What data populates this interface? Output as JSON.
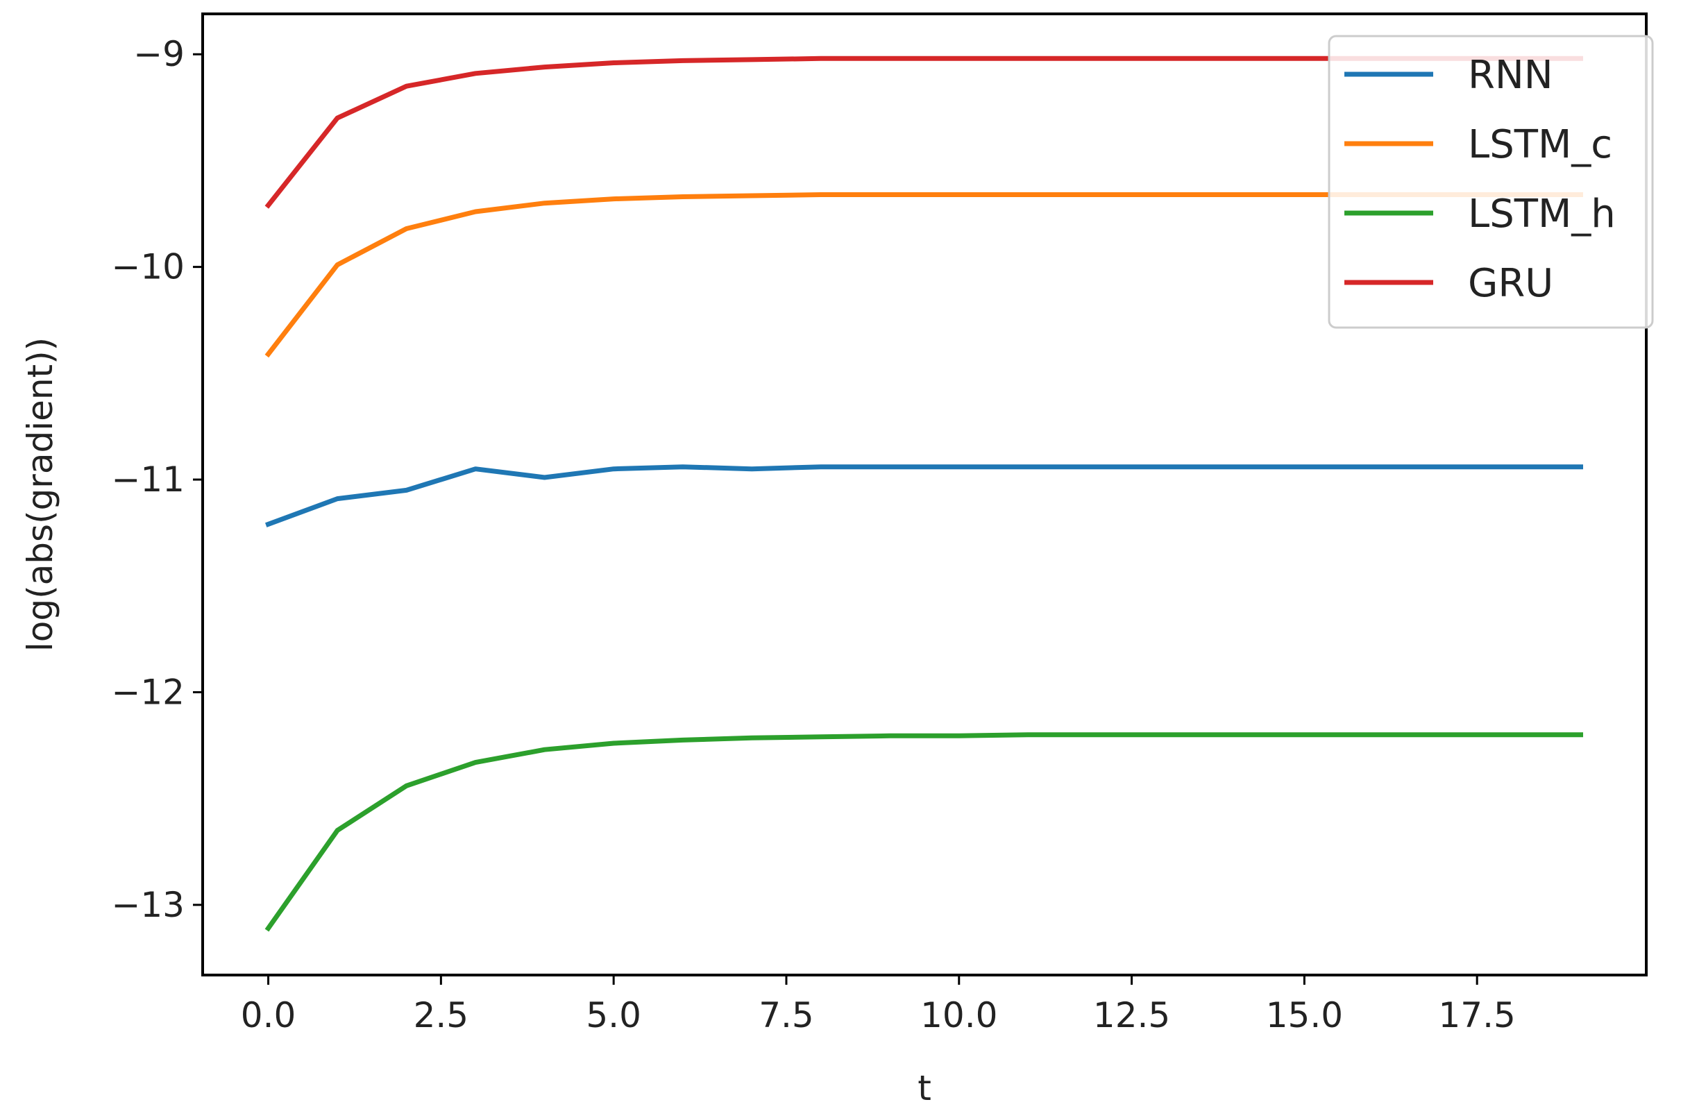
{
  "chart_data": {
    "type": "line",
    "title": "",
    "xlabel": "t",
    "ylabel": "log(abs(gradient))",
    "xlim": [
      -0.95,
      19.95
    ],
    "ylim": [
      -13.33,
      -8.81
    ],
    "xticks": [
      0.0,
      2.5,
      5.0,
      7.5,
      10.0,
      12.5,
      15.0,
      17.5
    ],
    "xtick_labels": [
      "0.0",
      "2.5",
      "5.0",
      "7.5",
      "10.0",
      "12.5",
      "15.0",
      "17.5"
    ],
    "yticks": [
      -9,
      -10,
      -11,
      -12,
      -13
    ],
    "ytick_labels": [
      "−9",
      "−10",
      "−11",
      "−12",
      "−13"
    ],
    "grid": false,
    "legend_position": "top-right",
    "x": [
      0,
      1,
      2,
      3,
      4,
      5,
      6,
      7,
      8,
      9,
      10,
      11,
      12,
      13,
      14,
      15,
      16,
      17,
      18,
      19
    ],
    "series": [
      {
        "name": "RNN",
        "color": "#1f77b4",
        "values": [
          -11.21,
          -11.09,
          -11.05,
          -10.95,
          -10.99,
          -10.95,
          -10.94,
          -10.95,
          -10.94,
          -10.94,
          -10.94,
          -10.94,
          -10.94,
          -10.94,
          -10.94,
          -10.94,
          -10.94,
          -10.94,
          -10.94,
          -10.94
        ]
      },
      {
        "name": "LSTM_c",
        "color": "#ff7f0e",
        "values": [
          -10.41,
          -9.99,
          -9.82,
          -9.74,
          -9.7,
          -9.68,
          -9.67,
          -9.665,
          -9.66,
          -9.66,
          -9.66,
          -9.66,
          -9.66,
          -9.66,
          -9.66,
          -9.66,
          -9.66,
          -9.66,
          -9.66,
          -9.66
        ]
      },
      {
        "name": "LSTM_h",
        "color": "#2ca02c",
        "values": [
          -13.11,
          -12.65,
          -12.44,
          -12.33,
          -12.27,
          -12.24,
          -12.225,
          -12.215,
          -12.21,
          -12.205,
          -12.205,
          -12.2,
          -12.2,
          -12.2,
          -12.2,
          -12.2,
          -12.2,
          -12.2,
          -12.2,
          -12.2
        ]
      },
      {
        "name": "GRU",
        "color": "#d62728",
        "values": [
          -9.71,
          -9.3,
          -9.15,
          -9.09,
          -9.06,
          -9.04,
          -9.03,
          -9.025,
          -9.02,
          -9.02,
          -9.02,
          -9.02,
          -9.02,
          -9.02,
          -9.02,
          -9.02,
          -9.02,
          -9.02,
          -9.02,
          -9.02
        ]
      }
    ]
  }
}
